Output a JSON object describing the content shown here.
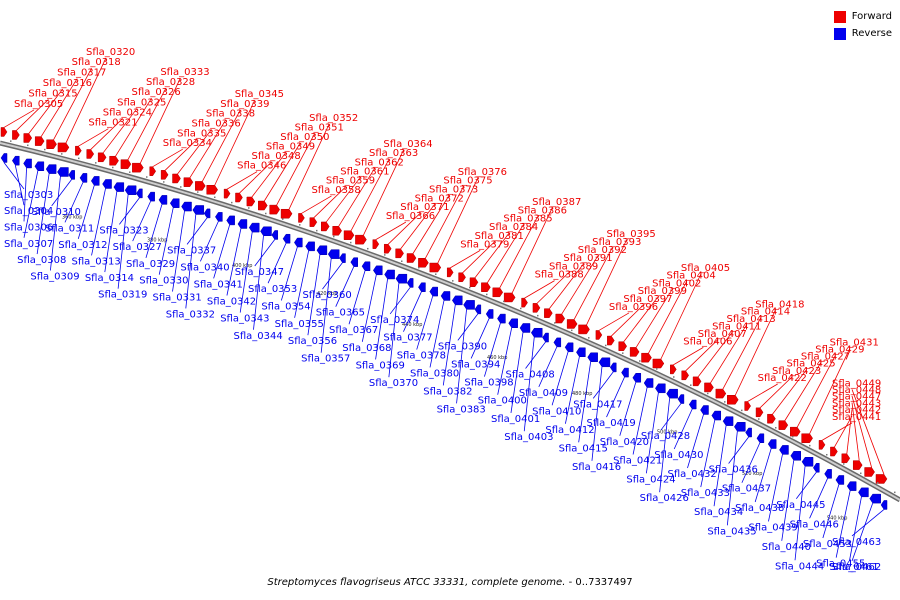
{
  "legend": {
    "forward_label": "Forward",
    "reverse_label": "Reverse",
    "forward_color": "#ee0000",
    "reverse_color": "#0000ee"
  },
  "caption": {
    "organism": "Streptomyces flavogriseus ATCC 33331, complete genome.",
    "range": " - 0..7337497"
  },
  "scale_ticks": [
    "360 kbp",
    "380 kbp",
    "400 kbp",
    "420 kbp",
    "440 kbp",
    "460 kbp",
    "480 kbp",
    "500 kbp",
    "520 kbp",
    "540 kbp"
  ],
  "genes_forward": [
    "Sfla_0305",
    "Sfla_0315",
    "Sfla_0316",
    "Sfla_0317",
    "Sfla_0318",
    "Sfla_0320",
    "Sfla_0321",
    "Sfla_0324",
    "Sfla_0325",
    "Sfla_0326",
    "Sfla_0328",
    "Sfla_0333",
    "Sfla_0334",
    "Sfla_0335",
    "Sfla_0336",
    "Sfla_0338",
    "Sfla_0339",
    "Sfla_0345",
    "Sfla_0346",
    "Sfla_0348",
    "Sfla_0349",
    "Sfla_0350",
    "Sfla_0351",
    "Sfla_0352",
    "Sfla_0358",
    "Sfla_0359",
    "Sfla_0361",
    "Sfla_0362",
    "Sfla_0363",
    "Sfla_0364",
    "Sfla_0366",
    "Sfla_0371",
    "Sfla_0372",
    "Sfla_0373",
    "Sfla_0375",
    "Sfla_0376",
    "Sfla_0379",
    "Sfla_0381",
    "Sfla_0384",
    "Sfla_0385",
    "Sfla_0386",
    "Sfla_0387",
    "Sfla_0388",
    "Sfla_0389",
    "Sfla_0391",
    "Sfla_0392",
    "Sfla_0393",
    "Sfla_0395",
    "Sfla_0396",
    "Sfla_0397",
    "Sfla_0399",
    "Sfla_0402",
    "Sfla_0404",
    "Sfla_0405",
    "Sfla_0406",
    "Sfla_0407",
    "Sfla_0411",
    "Sfla_0413",
    "Sfla_0414",
    "Sfla_0418",
    "Sfla_0422",
    "Sfla_0423",
    "Sfla_0425",
    "Sfla_0427",
    "Sfla_0429",
    "Sfla_0431",
    "Sfla_0441",
    "Sfla_0442",
    "Sfla_0443",
    "Sfla_0447",
    "Sfla_0448",
    "Sfla_0449"
  ],
  "genes_reverse": [
    "Sfla_0303",
    "Sfla_0304",
    "Sfla_0306",
    "Sfla_0307",
    "Sfla_0308",
    "Sfla_0309",
    "Sfla_0310",
    "Sfla_0311",
    "Sfla_0312",
    "Sfla_0313",
    "Sfla_0314",
    "Sfla_0319",
    "Sfla_0323",
    "Sfla_0327",
    "Sfla_0329",
    "Sfla_0330",
    "Sfla_0331",
    "Sfla_0332",
    "Sfla_0337",
    "Sfla_0340",
    "Sfla_0341",
    "Sfla_0342",
    "Sfla_0343",
    "Sfla_0344",
    "Sfla_0347",
    "Sfla_0353",
    "Sfla_0354",
    "Sfla_0355",
    "Sfla_0356",
    "Sfla_0357",
    "Sfla_0360",
    "Sfla_0365",
    "Sfla_0367",
    "Sfla_0368",
    "Sfla_0369",
    "Sfla_0370",
    "Sfla_0374",
    "Sfla_0377",
    "Sfla_0378",
    "Sfla_0380",
    "Sfla_0382",
    "Sfla_0383",
    "Sfla_0390",
    "Sfla_0394",
    "Sfla_0398",
    "Sfla_0400",
    "Sfla_0401",
    "Sfla_0403",
    "Sfla_0408",
    "Sfla_0409",
    "Sfla_0410",
    "Sfla_0412",
    "Sfla_0415",
    "Sfla_0416",
    "Sfla_0417",
    "Sfla_0419",
    "Sfla_0420",
    "Sfla_0421",
    "Sfla_0424",
    "Sfla_0426",
    "Sfla_0428",
    "Sfla_0430",
    "Sfla_0432",
    "Sfla_0433",
    "Sfla_0434",
    "Sfla_0435",
    "Sfla_0436",
    "Sfla_0437",
    "Sfla_0438",
    "Sfla_0439",
    "Sfla_0440",
    "Sfla_0444",
    "Sfla_0445",
    "Sfla_0446",
    "Sfla_0453",
    "Sfla_0455",
    "Sfla_0461",
    "Sfla_0462",
    "Sfla_0463"
  ]
}
